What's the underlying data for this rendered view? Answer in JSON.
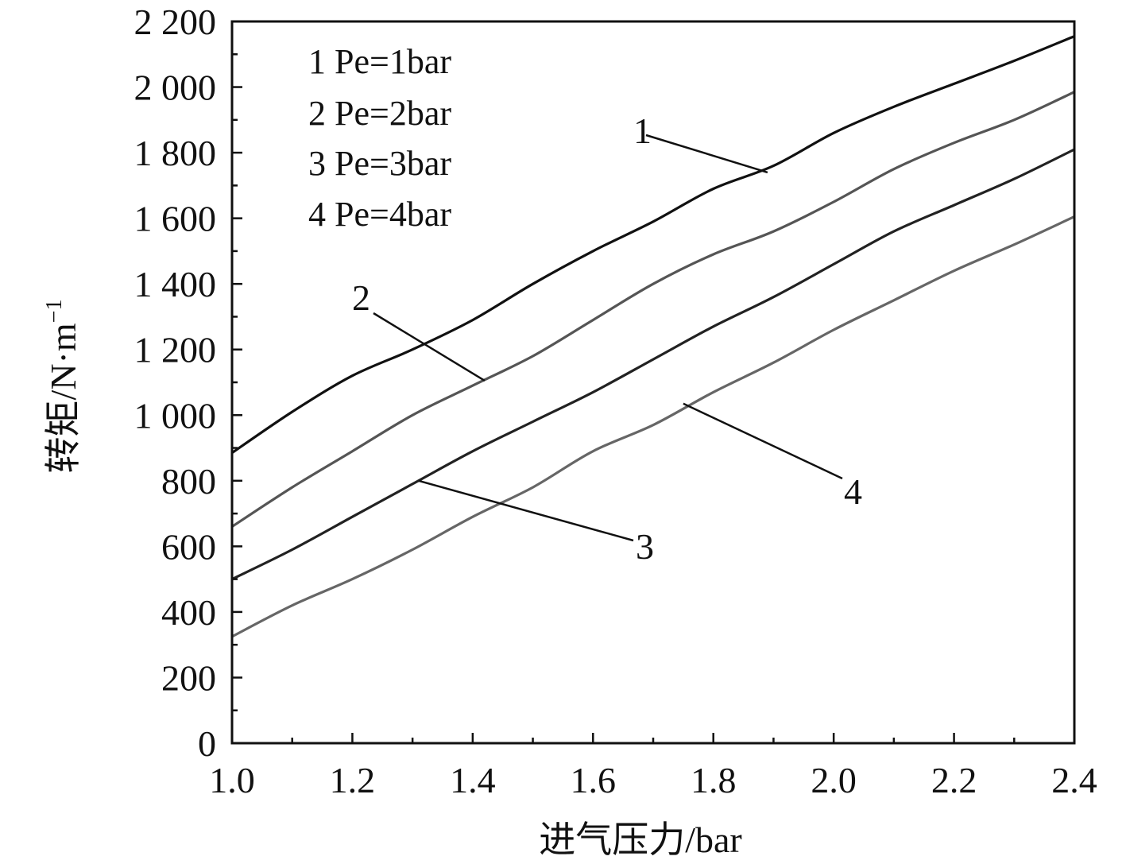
{
  "chart_data": {
    "type": "line",
    "title": "",
    "xlabel": "进气压力/bar",
    "ylabel": "转矩/N·m",
    "ylabel_superscript": "−1",
    "xlim": [
      1.0,
      2.4
    ],
    "ylim": [
      0,
      2200
    ],
    "x_major_ticks": [
      1.0,
      1.2,
      1.4,
      1.6,
      1.8,
      2.0,
      2.2,
      2.4
    ],
    "x_tick_labels": [
      "1.0",
      "1.2",
      "1.4",
      "1.6",
      "1.8",
      "2.0",
      "2.2",
      "2.4"
    ],
    "y_major_ticks": [
      0,
      200,
      400,
      600,
      800,
      1000,
      1200,
      1400,
      1600,
      1800,
      2000,
      2200
    ],
    "y_tick_labels": [
      "0",
      "200",
      "400",
      "600",
      "800",
      "1 000",
      "1 200",
      "1 400",
      "1 600",
      "1 800",
      "2 000",
      "2 200"
    ],
    "grid": false,
    "legend_placement": "top-left",
    "legend": [
      "1 Pe=1bar",
      "2 Pe=2bar",
      "3 Pe=3bar",
      "4 Pe=4bar"
    ],
    "series": [
      {
        "label": "1",
        "color": "#111111",
        "x": [
          1.0,
          1.1,
          1.2,
          1.3,
          1.4,
          1.5,
          1.6,
          1.7,
          1.8,
          1.9,
          2.0,
          2.1,
          2.2,
          2.3,
          2.4
        ],
        "values": [
          885,
          1010,
          1120,
          1200,
          1290,
          1400,
          1500,
          1590,
          1690,
          1760,
          1860,
          1940,
          2010,
          2080,
          2155
        ]
      },
      {
        "label": "2",
        "color": "#555555",
        "x": [
          1.0,
          1.1,
          1.2,
          1.3,
          1.4,
          1.5,
          1.6,
          1.7,
          1.8,
          1.9,
          2.0,
          2.1,
          2.2,
          2.3,
          2.4
        ],
        "values": [
          660,
          780,
          890,
          1000,
          1090,
          1180,
          1290,
          1400,
          1490,
          1560,
          1650,
          1750,
          1830,
          1900,
          1985
        ]
      },
      {
        "label": "3",
        "color": "#222222",
        "x": [
          1.0,
          1.1,
          1.2,
          1.3,
          1.4,
          1.5,
          1.6,
          1.7,
          1.8,
          1.9,
          2.0,
          2.1,
          2.2,
          2.3,
          2.4
        ],
        "values": [
          500,
          590,
          690,
          790,
          890,
          980,
          1070,
          1170,
          1270,
          1360,
          1460,
          1560,
          1640,
          1720,
          1810
        ]
      },
      {
        "label": "4",
        "color": "#666666",
        "x": [
          1.0,
          1.1,
          1.2,
          1.3,
          1.4,
          1.5,
          1.6,
          1.7,
          1.8,
          1.9,
          2.0,
          2.1,
          2.2,
          2.3,
          2.4
        ],
        "values": [
          325,
          420,
          500,
          590,
          690,
          780,
          890,
          970,
          1070,
          1160,
          1260,
          1350,
          1440,
          1520,
          1605
        ]
      }
    ],
    "callouts": [
      {
        "label": "1",
        "x": 1.89,
        "y": 1740
      },
      {
        "label": "2",
        "x": 1.42,
        "y": 1105
      },
      {
        "label": "3",
        "x": 1.31,
        "y": 800
      },
      {
        "label": "4",
        "x": 1.75,
        "y": 1035
      }
    ]
  }
}
